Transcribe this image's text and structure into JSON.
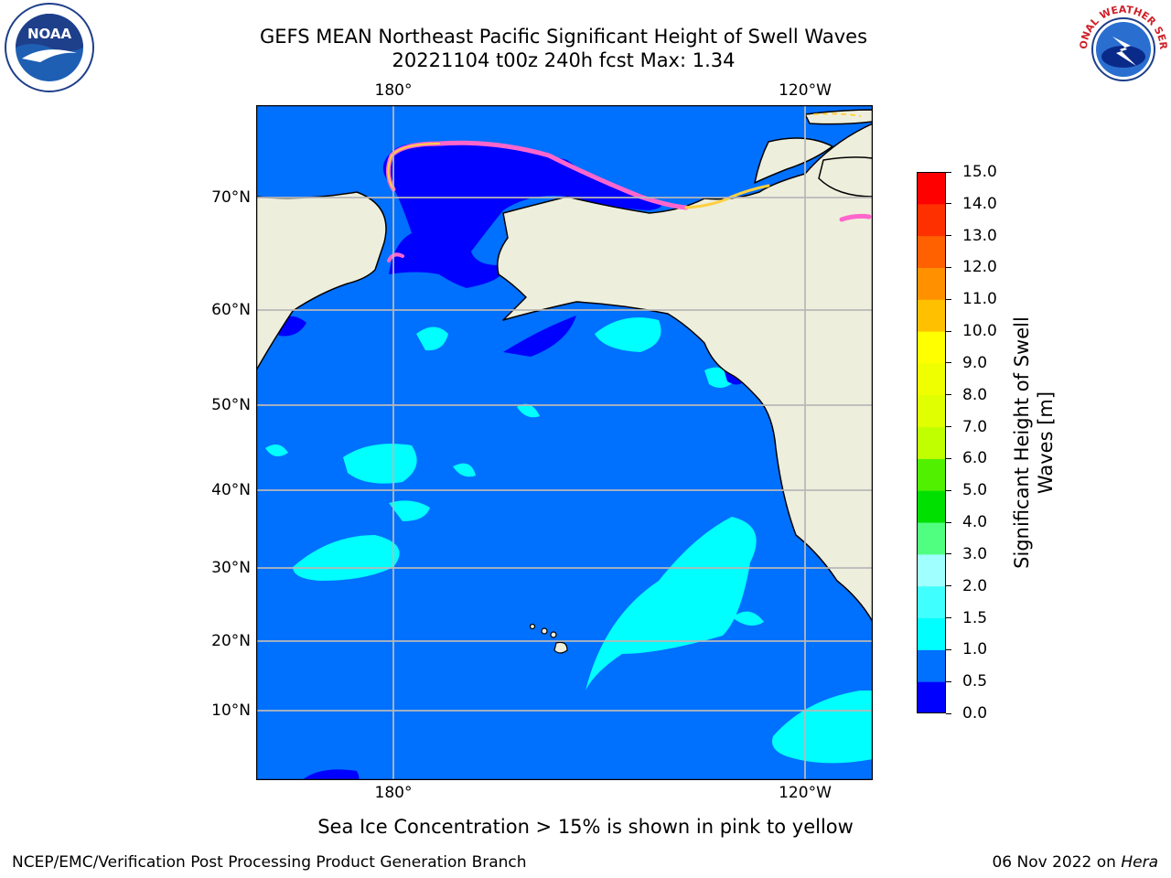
{
  "title": {
    "line1": "GEFS MEAN Northeast Pacific Significant Height of Swell Waves",
    "line2": "20221104 t00z 240h fcst   Max: 1.34"
  },
  "axes": {
    "lon_ticks": [
      "180°",
      "120°W"
    ],
    "lat_ticks": [
      "70°N",
      "60°N",
      "50°N",
      "40°N",
      "30°N",
      "20°N",
      "10°N"
    ]
  },
  "colorbar": {
    "label_line1": "Significant Height of Swell",
    "label_line2": "Waves [m]",
    "ticks": [
      "0.0",
      "0.5",
      "1.0",
      "1.5",
      "2.0",
      "3.0",
      "4.0",
      "5.0",
      "6.0",
      "7.0",
      "8.0",
      "9.0",
      "10.0",
      "11.0",
      "12.0",
      "13.0",
      "14.0",
      "15.0"
    ],
    "colors": [
      "#0000ff",
      "#0070ff",
      "#00ffff",
      "#40ffff",
      "#a0ffff",
      "#50ff80",
      "#00e000",
      "#50f000",
      "#c0ff00",
      "#e0ff00",
      "#f0ff00",
      "#ffff00",
      "#ffc000",
      "#ff9000",
      "#ff6000",
      "#ff3000",
      "#ff0000"
    ]
  },
  "map_colors": {
    "ocean": "#0070ff",
    "ocean_calm": "#0000ff",
    "swell_mid": "#00ffff",
    "land": "#eeeedd",
    "ice_pink": "#ff66cc",
    "ice_yellow": "#ffd040",
    "grid": "#b8b8b8"
  },
  "caption": "Sea Ice Concentration > 15% is shown in pink to yellow",
  "footer": {
    "credit": "NCEP/EMC/Verification Post Processing Product Generation Branch",
    "date": "06 Nov 2022 on ",
    "host": "Hera"
  },
  "logos": {
    "left": "NOAA",
    "right": "NATIONAL WEATHER SERVICE"
  }
}
